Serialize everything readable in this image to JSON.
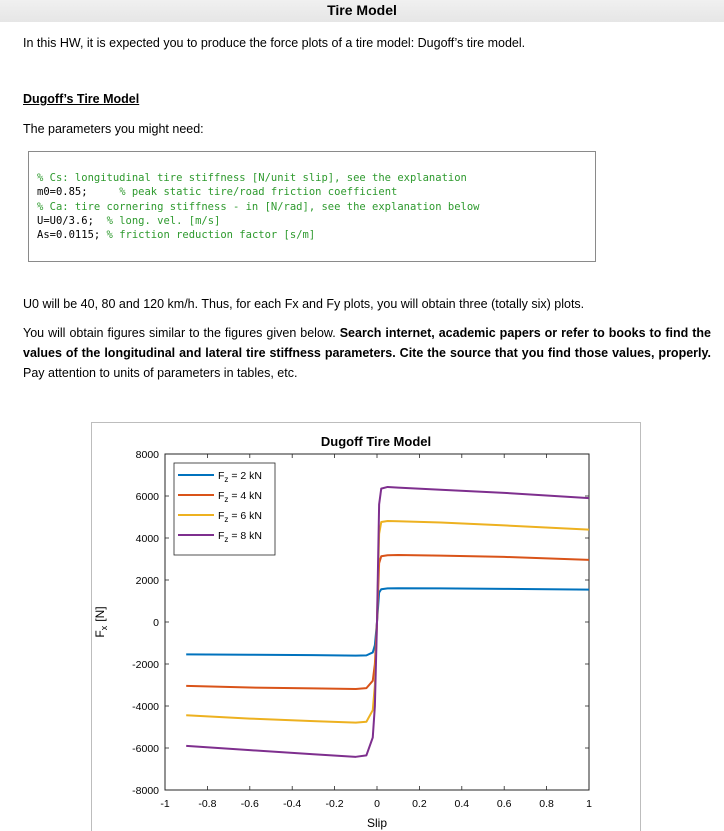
{
  "doc": {
    "title": "Tire Model",
    "intro": "In this HW, it is expected you to produce the force plots of a tire model: Dugoff’s tire model.",
    "section_heading": "Dugoff’s Tire Model",
    "params_intro": "The parameters you might need:",
    "code": [
      {
        "code": "",
        "comment": "% Cs: longitudinal tire stiffness [N/unit slip], see the explanation"
      },
      {
        "code": "m0=0.85;",
        "comment": "% peak static tire/road friction coefficient"
      },
      {
        "code": "",
        "comment": "% Ca: tire cornering stiffness - in [N/rad], see the explanation below"
      },
      {
        "code": "U=U0/3.6;",
        "comment": "% long. vel. [m/s]"
      },
      {
        "code": "As=0.0115;",
        "comment": "% friction reduction factor [s/m]"
      }
    ],
    "para1": "U0 will be 40, 80 and 120 km/h. Thus, for each Fx and Fy plots, you will obtain three (totally six) plots.",
    "para2_start": "You will obtain figures similar to the figures given below. ",
    "para2_bold": "Search internet, academic papers or refer to books to find the values of the longitudinal and lateral tire stiffness parameters. Cite the source that you find those values, properly.",
    "para2_end": " Pay attention to units of parameters in tables, etc."
  },
  "chart_data": {
    "type": "line",
    "title": "Dugoff Tire Model",
    "xlabel": "Slip",
    "ylabel_main": "F",
    "ylabel_sub": "x",
    "ylabel_unit": "[N]",
    "xlim": [
      -1,
      1
    ],
    "ylim": [
      -8000,
      8000
    ],
    "x_ticks": [
      -1,
      -0.8,
      -0.6,
      -0.4,
      -0.2,
      0,
      0.2,
      0.4,
      0.6,
      0.8,
      1
    ],
    "y_ticks": [
      8000,
      6000,
      4000,
      2000,
      0,
      -2000,
      -4000,
      -6000,
      -8000
    ],
    "legend_placement": "top-left",
    "x": [
      -0.9,
      -0.6,
      -0.3,
      -0.1,
      -0.05,
      -0.02,
      -0.01,
      0,
      0.01,
      0.02,
      0.05,
      0.1,
      0.3,
      0.6,
      1.0
    ],
    "series": [
      {
        "name_base": "F",
        "name_sub": "z",
        "name_rest": " = 2 kN",
        "color": "#0072BD",
        "values": [
          -1540,
          -1560,
          -1580,
          -1600,
          -1590,
          -1450,
          -1100,
          0,
          1400,
          1560,
          1600,
          1610,
          1600,
          1580,
          1540
        ]
      },
      {
        "name_base": "F",
        "name_sub": "z",
        "name_rest": " = 4 kN",
        "color": "#D95319",
        "values": [
          -3040,
          -3120,
          -3160,
          -3190,
          -3150,
          -2800,
          -2000,
          0,
          2800,
          3130,
          3180,
          3190,
          3160,
          3100,
          2960
        ]
      },
      {
        "name_base": "F",
        "name_sub": "z",
        "name_rest": " = 6 kN",
        "color": "#EDB120",
        "values": [
          -4440,
          -4600,
          -4720,
          -4790,
          -4750,
          -4200,
          -3000,
          0,
          4200,
          4760,
          4810,
          4800,
          4740,
          4600,
          4400
        ]
      },
      {
        "name_base": "F",
        "name_sub": "z",
        "name_rest": " = 8 kN",
        "color": "#7E2F8E",
        "values": [
          -5900,
          -6100,
          -6300,
          -6420,
          -6350,
          -5500,
          -4000,
          0,
          5600,
          6350,
          6430,
          6400,
          6300,
          6150,
          5900
        ]
      }
    ]
  }
}
